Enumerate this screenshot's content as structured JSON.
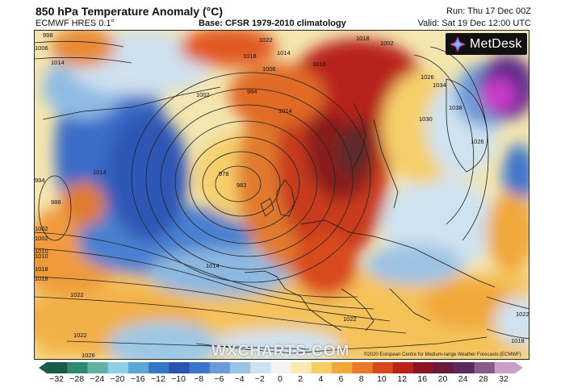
{
  "header": {
    "title": "850 hPa Temperature Anomaly (°C)",
    "model": "ECMWF HRES 0.1°",
    "base": "Base: CFSR 1979-2010 climatology",
    "run": "Run: Thu 17 Dec 00Z",
    "valid": "Valid: Sat 19 Dec 12:00 UTC"
  },
  "logo": {
    "text": "MetDesk"
  },
  "watermark": "WXCHARTS.COM",
  "copyright": "©2020 European Centre for Medium-range Weather Forecasts (ECMWF)",
  "isobar_labels": [
    "998",
    "1006",
    "1014",
    "1022",
    "1018",
    "1014",
    "1010",
    "1006",
    "1002",
    "994",
    "978",
    "982",
    "1002",
    "1010",
    "1014",
    "1018",
    "1022",
    "1026",
    "994",
    "986",
    "1002",
    "1010",
    "1014",
    "1018",
    "1022",
    "1018",
    "1026",
    "1030",
    "1034",
    "1038",
    "1002",
    "1026",
    "1022",
    "1018",
    "1014",
    "1022"
  ],
  "colorbar": {
    "labels": [
      "−32",
      "−28",
      "−24",
      "−20",
      "−16",
      "−12",
      "−10",
      "−8",
      "−6",
      "−4",
      "−2",
      "0",
      "2",
      "4",
      "6",
      "8",
      "10",
      "12",
      "16",
      "20",
      "24",
      "28",
      "32"
    ],
    "colors": [
      "#1a5a4a",
      "#2d8a6e",
      "#5fb3a0",
      "#8fd0e8",
      "#5aa8d8",
      "#3676c4",
      "#2a52b0",
      "#3c74cc",
      "#6a9cd8",
      "#9cc2e4",
      "#cfe2f0",
      "#f4f4f0",
      "#f8eab0",
      "#f6cf6a",
      "#f0a83a",
      "#e87a2a",
      "#d84a1e",
      "#b8221a",
      "#8a1424",
      "#6a1a3a",
      "#5a2a5a",
      "#8a5a8a",
      "#c8a0c8"
    ]
  }
}
